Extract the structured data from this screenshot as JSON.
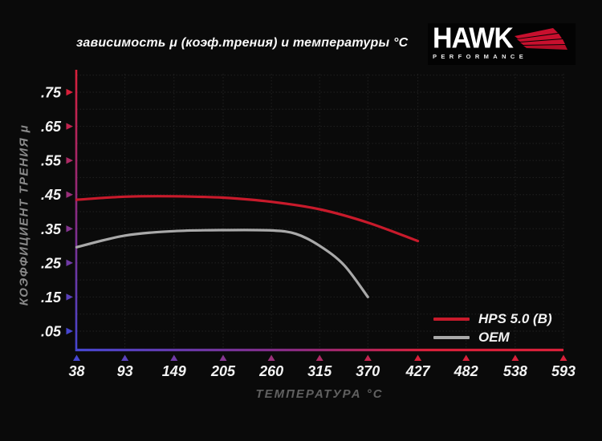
{
  "title": "зависимость μ (коэф.трения) и температуры °C",
  "logo": {
    "brand": "HAWK",
    "sub": "PERFORMANCE",
    "wing_color": "#c8102e"
  },
  "chart_data": {
    "type": "line",
    "title": "зависимость μ (коэф.трения) и температуры °C",
    "xlabel": "ТЕМПЕРАТУРА °C",
    "ylabel": "КОЭФФИЦИЕНТ ТРЕНИЯ μ",
    "x_ticks": [
      38,
      93,
      149,
      205,
      260,
      315,
      370,
      427,
      482,
      538,
      593
    ],
    "y_tick_labels": [
      ".75",
      ".65",
      ".55",
      ".45",
      ".35",
      ".25",
      ".15",
      ".05"
    ],
    "y_tick_values": [
      0.75,
      0.65,
      0.55,
      0.45,
      0.35,
      0.25,
      0.15,
      0.05
    ],
    "xlim": [
      38,
      593
    ],
    "ylim": [
      0,
      0.8
    ],
    "grid": "dark dotted, horizontal every 0.05, vertical at each temperature tick",
    "legend_position": "bottom-right",
    "series": [
      {
        "name": "HPS 5.0 (B)",
        "color": "#c81a2b",
        "points": [
          [
            38,
            0.435
          ],
          [
            93,
            0.444
          ],
          [
            149,
            0.445
          ],
          [
            205,
            0.441
          ],
          [
            260,
            0.429
          ],
          [
            315,
            0.407
          ],
          [
            370,
            0.368
          ],
          [
            427,
            0.314
          ]
        ]
      },
      {
        "name": "OEM",
        "color": "#a9a9a9",
        "points": [
          [
            38,
            0.296
          ],
          [
            93,
            0.33
          ],
          [
            149,
            0.343
          ],
          [
            205,
            0.346
          ],
          [
            260,
            0.345
          ],
          [
            288,
            0.335
          ],
          [
            315,
            0.3
          ],
          [
            343,
            0.243
          ],
          [
            370,
            0.15
          ]
        ]
      }
    ],
    "colors": {
      "axis_hot_end": "#d8203a",
      "axis_cold_end": "#4646d0",
      "axis_mid": "#8a2a80",
      "grid": "#212121",
      "tick_text": "#f3f3f3",
      "background": "#0a0a0a"
    }
  }
}
